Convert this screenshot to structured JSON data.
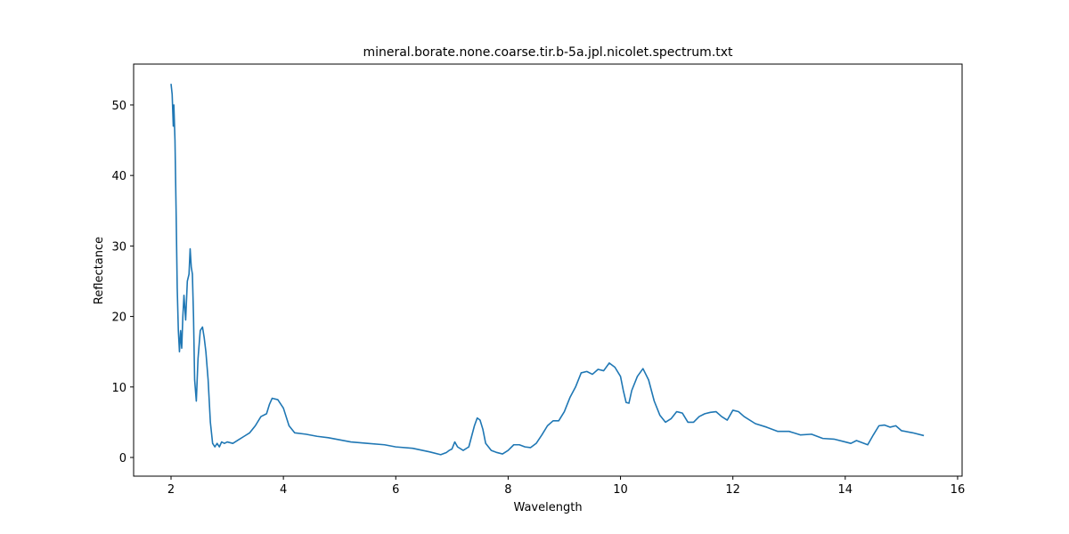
{
  "chart_data": {
    "type": "line",
    "title": "mineral.borate.none.coarse.tir.b-5a.jpl.nicolet.spectrum.txt",
    "x_label": "Wavelength",
    "y_label": "Reflectance",
    "x": [
      2.0,
      2.02,
      2.04,
      2.05,
      2.07,
      2.09,
      2.11,
      2.13,
      2.15,
      2.17,
      2.19,
      2.21,
      2.23,
      2.26,
      2.29,
      2.32,
      2.34,
      2.36,
      2.38,
      2.4,
      2.42,
      2.45,
      2.48,
      2.52,
      2.56,
      2.59,
      2.62,
      2.66,
      2.7,
      2.74,
      2.78,
      2.82,
      2.86,
      2.9,
      2.95,
      3.0,
      3.1,
      3.2,
      3.3,
      3.4,
      3.5,
      3.6,
      3.7,
      3.75,
      3.8,
      3.9,
      4.0,
      4.1,
      4.2,
      4.4,
      4.6,
      4.8,
      5.0,
      5.2,
      5.5,
      5.8,
      6.0,
      6.3,
      6.6,
      6.8,
      6.9,
      6.95,
      7.0,
      7.05,
      7.1,
      7.2,
      7.3,
      7.4,
      7.45,
      7.5,
      7.55,
      7.6,
      7.7,
      7.8,
      7.9,
      8.0,
      8.1,
      8.2,
      8.3,
      8.4,
      8.5,
      8.6,
      8.7,
      8.8,
      8.9,
      9.0,
      9.1,
      9.2,
      9.3,
      9.4,
      9.5,
      9.6,
      9.7,
      9.8,
      9.9,
      10.0,
      10.05,
      10.1,
      10.15,
      10.2,
      10.3,
      10.4,
      10.5,
      10.6,
      10.7,
      10.8,
      10.9,
      11.0,
      11.1,
      11.2,
      11.3,
      11.4,
      11.5,
      11.6,
      11.7,
      11.8,
      11.9,
      12.0,
      12.1,
      12.2,
      12.4,
      12.6,
      12.8,
      13.0,
      13.2,
      13.4,
      13.6,
      13.8,
      14.0,
      14.1,
      14.2,
      14.4,
      14.5,
      14.6,
      14.7,
      14.8,
      14.9,
      15.0,
      15.2,
      15.4
    ],
    "values": [
      53.0,
      51.5,
      47,
      50,
      45,
      35,
      24,
      18,
      15,
      18,
      15.5,
      20,
      23,
      19.5,
      25,
      26,
      29.6,
      27,
      26,
      20,
      11,
      8,
      14,
      18,
      18.5,
      17,
      15,
      11,
      5,
      2,
      1.5,
      2.0,
      1.5,
      2.2,
      2.0,
      2.2,
      2.0,
      2.5,
      3.0,
      3.5,
      4.5,
      5.8,
      6.2,
      7.5,
      8.4,
      8.2,
      7.0,
      4.5,
      3.5,
      3.3,
      3.0,
      2.8,
      2.5,
      2.2,
      2.0,
      1.8,
      1.5,
      1.3,
      0.8,
      0.4,
      0.7,
      1.0,
      1.2,
      2.2,
      1.5,
      1.0,
      1.5,
      4.5,
      5.6,
      5.3,
      4.0,
      2.0,
      1.0,
      0.7,
      0.5,
      1.0,
      1.8,
      1.8,
      1.5,
      1.4,
      2.0,
      3.2,
      4.5,
      5.2,
      5.2,
      6.5,
      8.5,
      10.0,
      12.0,
      12.2,
      11.8,
      12.5,
      12.3,
      13.4,
      12.8,
      11.5,
      9.5,
      7.8,
      7.7,
      9.5,
      11.5,
      12.6,
      11.0,
      8.0,
      6.0,
      5.0,
      5.5,
      6.5,
      6.3,
      5.0,
      5.0,
      5.8,
      6.2,
      6.4,
      6.5,
      5.8,
      5.3,
      6.7,
      6.5,
      5.8,
      4.8,
      4.3,
      3.7,
      3.7,
      3.2,
      3.3,
      2.7,
      2.6,
      2.2,
      2.0,
      2.4,
      1.8,
      3.2,
      4.5,
      4.6,
      4.3,
      4.5,
      3.8,
      3.5,
      3.1
    ],
    "color": "#1f77b4",
    "xlim": [
      1.334,
      16.08
    ],
    "ylim": [
      -2.65,
      55.8
    ],
    "xticks": [
      2,
      4,
      6,
      8,
      10,
      12,
      14,
      16
    ],
    "yticks": [
      0,
      10,
      20,
      30,
      40,
      50
    ]
  }
}
